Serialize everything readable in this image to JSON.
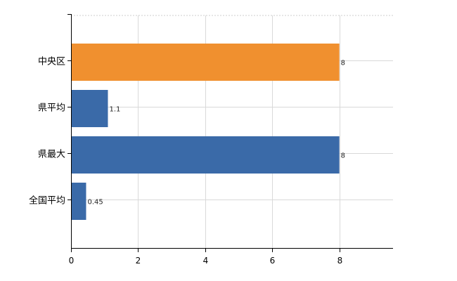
{
  "chart_data": {
    "type": "bar",
    "orientation": "horizontal",
    "categories": [
      "中央区",
      "県平均",
      "県最大",
      "全国平均"
    ],
    "values": [
      8,
      1.1,
      8,
      0.45
    ],
    "value_labels": [
      "8",
      "1.1",
      "8",
      "0.45"
    ],
    "bar_colors": [
      "#f0902f",
      "#3a6aa8",
      "#3a6aa8",
      "#3a6aa8"
    ],
    "xlim": [
      0,
      9.6
    ],
    "x_ticks": [
      0,
      2,
      4,
      6,
      8
    ],
    "x_tick_labels": [
      "0",
      "2",
      "4",
      "6",
      "8"
    ],
    "grid": true,
    "title": "",
    "xlabel": "",
    "ylabel": ""
  }
}
